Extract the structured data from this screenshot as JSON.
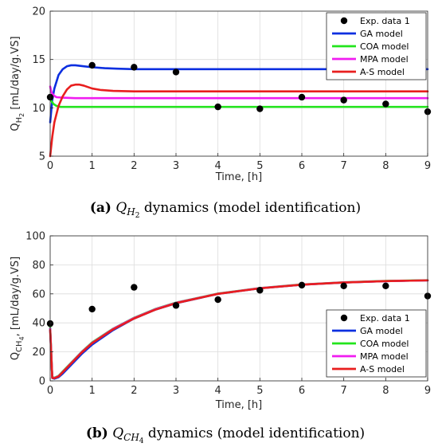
{
  "chart_data": [
    {
      "type": "line",
      "panel": "a",
      "ylabel": "Q_{H_2} [mL/day/g.VS]",
      "ylabel_main": "Q",
      "ylabel_sub": "H",
      "ylabel_subsub": "2",
      "ylabel_rest": " [mL/day/g.VS]",
      "xlabel": "Time, [h]",
      "xlim": [
        0,
        9
      ],
      "ylim": [
        5,
        20
      ],
      "xticks": [
        0,
        1,
        2,
        3,
        4,
        5,
        6,
        7,
        8,
        9
      ],
      "yticks": [
        5,
        10,
        15,
        20
      ],
      "grid": true,
      "legend_position": "top-right",
      "caption": {
        "label": "(a)",
        "symbol_main": "Q",
        "symbol_sub": "H",
        "symbol_subsub": "2",
        "text": " dynamics (model identification)"
      },
      "series": [
        {
          "name": "Exp. data 1",
          "kind": "scatter",
          "color": "#000000",
          "x": [
            0,
            1,
            2,
            3,
            4,
            5,
            6,
            7,
            8,
            9
          ],
          "y": [
            11.1,
            14.4,
            14.2,
            13.7,
            10.1,
            9.9,
            11.1,
            10.8,
            10.4,
            9.6
          ]
        },
        {
          "name": "GA model",
          "kind": "line",
          "color": "#0c2fe0",
          "x": [
            0,
            0.05,
            0.1,
            0.2,
            0.3,
            0.4,
            0.5,
            0.6,
            0.7,
            0.8,
            1.0,
            1.3,
            1.6,
            2,
            3,
            4,
            5,
            6,
            7,
            8,
            9
          ],
          "y": [
            8.5,
            10.8,
            12.0,
            13.4,
            14.0,
            14.3,
            14.4,
            14.4,
            14.35,
            14.3,
            14.2,
            14.1,
            14.05,
            14.0,
            14.0,
            14.0,
            14.0,
            14.0,
            14.0,
            14.0,
            14.0
          ]
        },
        {
          "name": "COA model",
          "kind": "line",
          "color": "#22e51c",
          "x": [
            0,
            0.03,
            0.08,
            0.15,
            0.25,
            0.5,
            1,
            2,
            3,
            4,
            5,
            6,
            7,
            8,
            9
          ],
          "y": [
            11.0,
            10.7,
            10.4,
            10.2,
            10.1,
            10.1,
            10.1,
            10.1,
            10.1,
            10.1,
            10.1,
            10.1,
            10.1,
            10.1,
            10.1
          ]
        },
        {
          "name": "MPA model",
          "kind": "line",
          "color": "#f01cf0",
          "x": [
            0,
            0.03,
            0.08,
            0.15,
            0.3,
            0.6,
            1,
            2,
            3,
            4,
            5,
            6,
            7,
            8,
            9
          ],
          "y": [
            12.2,
            11.6,
            11.3,
            11.1,
            11.05,
            11.0,
            11.0,
            11.0,
            11.0,
            11.0,
            11.0,
            11.0,
            11.0,
            11.0,
            11.0
          ]
        },
        {
          "name": "A-S model",
          "kind": "line",
          "color": "#e81e1e",
          "x": [
            0,
            0.05,
            0.1,
            0.2,
            0.3,
            0.4,
            0.5,
            0.6,
            0.7,
            0.8,
            1.0,
            1.2,
            1.5,
            2,
            2.5,
            3,
            4,
            5,
            6,
            7,
            8,
            9
          ],
          "y": [
            5.0,
            7.0,
            8.5,
            10.2,
            11.2,
            11.9,
            12.3,
            12.4,
            12.4,
            12.3,
            12.0,
            11.85,
            11.75,
            11.7,
            11.7,
            11.7,
            11.7,
            11.7,
            11.7,
            11.7,
            11.7,
            11.7
          ]
        }
      ]
    },
    {
      "type": "line",
      "panel": "b",
      "ylabel": "Q_{CH_4}, [mL/day/g.VS]",
      "ylabel_main": "Q",
      "ylabel_sub": "CH",
      "ylabel_subsub": "4",
      "ylabel_rest": ", [mL/day/g.VS]",
      "xlabel": "Time, [h]",
      "xlim": [
        0,
        9
      ],
      "ylim": [
        0,
        100
      ],
      "xticks": [
        0,
        1,
        2,
        3,
        4,
        5,
        6,
        7,
        8,
        9
      ],
      "yticks": [
        0,
        20,
        40,
        60,
        80,
        100
      ],
      "grid": true,
      "legend_position": "bottom-right",
      "caption": {
        "label": "(b)",
        "symbol_main": "Q",
        "symbol_sub": "CH",
        "symbol_subsub": "4",
        "text": " dynamics (model identification)"
      },
      "series": [
        {
          "name": "Exp. data 1",
          "kind": "scatter",
          "color": "#000000",
          "x": [
            0,
            1,
            2,
            3,
            4,
            5,
            6,
            7,
            8,
            9
          ],
          "y": [
            39.5,
            49.5,
            64.5,
            52,
            56,
            62.5,
            66,
            65.5,
            65.5,
            58.5
          ]
        },
        {
          "name": "GA model",
          "kind": "line",
          "color": "#0c2fe0",
          "x": [
            0,
            0.05,
            0.1,
            0.2,
            0.3,
            0.5,
            0.75,
            1,
            1.5,
            2,
            2.5,
            3,
            4,
            5,
            6,
            7,
            8,
            9
          ],
          "y": [
            36,
            2.0,
            1.5,
            2.5,
            5,
            11,
            18.5,
            25,
            35,
            43,
            49,
            53.5,
            60,
            63.8,
            66.3,
            67.8,
            68.8,
            69.3
          ]
        },
        {
          "name": "COA model",
          "kind": "line",
          "color": "#22e51c",
          "x": [
            0,
            0.05,
            0.1,
            0.2,
            0.3,
            0.5,
            0.75,
            1,
            1.5,
            2,
            2.5,
            3,
            4,
            5,
            6,
            7,
            8,
            9
          ],
          "y": [
            37,
            2.5,
            2.2,
            3.5,
            6.5,
            12.5,
            20,
            26.5,
            36,
            43.5,
            49.5,
            54,
            60.2,
            64,
            66.5,
            68,
            68.9,
            69.4
          ]
        },
        {
          "name": "MPA model",
          "kind": "line",
          "color": "#f01cf0",
          "x": [
            0,
            0.05,
            0.1,
            0.2,
            0.3,
            0.5,
            0.75,
            1,
            1.5,
            2,
            2.5,
            3,
            4,
            5,
            6,
            7,
            8,
            9
          ],
          "y": [
            36,
            2.2,
            2.0,
            3.2,
            6.2,
            12.2,
            19.8,
            26.2,
            35.8,
            43.3,
            49.3,
            53.8,
            60.1,
            63.9,
            66.4,
            67.9,
            68.8,
            69.3
          ]
        },
        {
          "name": "A-S model",
          "kind": "line",
          "color": "#e81e1e",
          "x": [
            0,
            0.05,
            0.1,
            0.2,
            0.3,
            0.5,
            0.75,
            1,
            1.5,
            2,
            2.5,
            3,
            4,
            5,
            6,
            7,
            8,
            9
          ],
          "y": [
            35,
            2.0,
            1.8,
            3.0,
            6.0,
            12.0,
            19.5,
            26.0,
            35.5,
            43.0,
            49.0,
            53.6,
            60.0,
            63.8,
            66.3,
            67.8,
            68.8,
            69.3
          ]
        }
      ]
    }
  ]
}
